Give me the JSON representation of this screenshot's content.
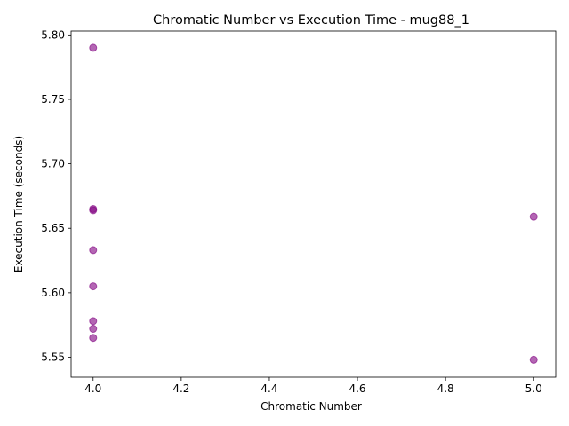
{
  "chart_data": {
    "type": "scatter",
    "title": "Chromatic Number vs Execution Time - mug88_1",
    "xlabel": "Chromatic Number",
    "ylabel": "Execution Time (seconds)",
    "xlim": [
      3.95,
      5.05
    ],
    "ylim": [
      5.5345,
      5.803
    ],
    "x_ticks": [
      "4.0",
      "4.2",
      "4.4",
      "4.6",
      "4.8",
      "5.0"
    ],
    "y_ticks": [
      "5.55",
      "5.60",
      "5.65",
      "5.70",
      "5.75",
      "5.80"
    ],
    "grid": false,
    "marker_color": "#800080",
    "marker_alpha": 0.6,
    "points": [
      {
        "x": 4,
        "y": 5.79
      },
      {
        "x": 4,
        "y": 5.665
      },
      {
        "x": 4,
        "y": 5.664
      },
      {
        "x": 4,
        "y": 5.633
      },
      {
        "x": 4,
        "y": 5.605
      },
      {
        "x": 4,
        "y": 5.578
      },
      {
        "x": 4,
        "y": 5.572
      },
      {
        "x": 4,
        "y": 5.565
      },
      {
        "x": 5,
        "y": 5.659
      },
      {
        "x": 5,
        "y": 5.548
      }
    ]
  }
}
